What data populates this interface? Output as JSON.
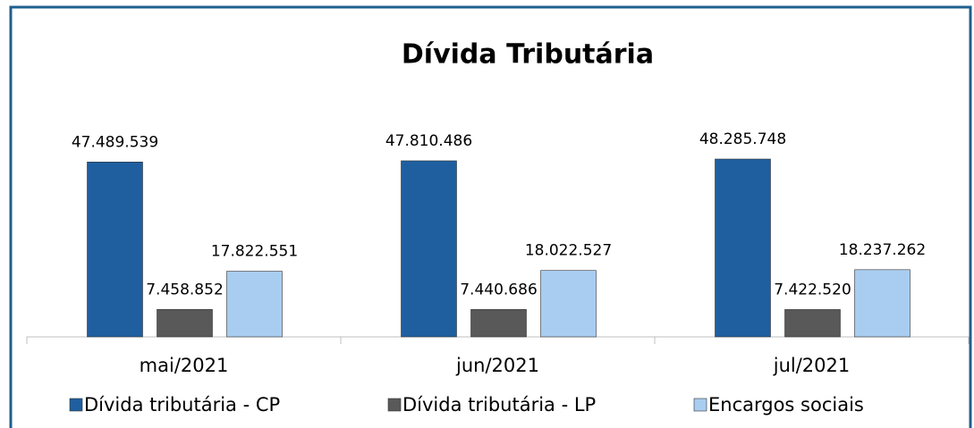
{
  "chart_data": {
    "type": "bar",
    "title": "Dívida Tributária",
    "categories": [
      "mai/2021",
      "jun/2021",
      "jul/2021"
    ],
    "series": [
      {
        "name": "Dívida tributária - CP",
        "color": "#1f5fa0",
        "values": [
          47489539,
          47810486,
          48285748
        ],
        "value_labels": [
          "47.489.539",
          "47.810.486",
          "48.285.748"
        ]
      },
      {
        "name": "Dívida tributária - LP",
        "color": "#595959",
        "values": [
          7458852,
          7440686,
          7422520
        ],
        "value_labels": [
          "7.458.852",
          "7.440.686",
          "7.422.520"
        ]
      },
      {
        "name": "Encargos sociais",
        "color": "#a9cdf0",
        "values": [
          17822551,
          18022527,
          18237262
        ],
        "value_labels": [
          "17.822.551",
          "18.022.527",
          "18.237.262"
        ]
      }
    ]
  }
}
